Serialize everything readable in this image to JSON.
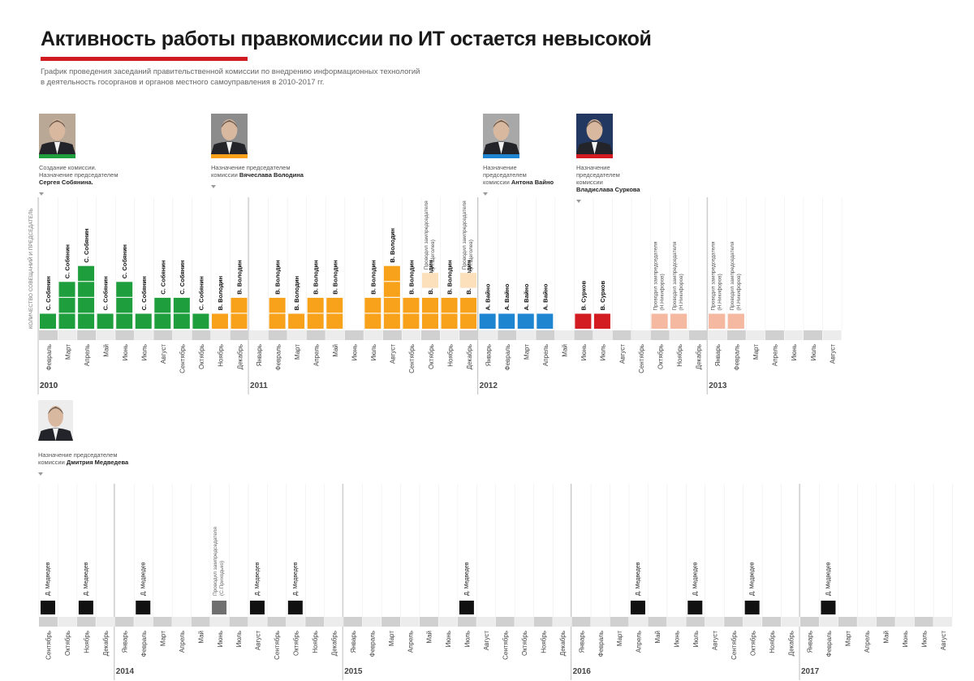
{
  "title": "Активность работы правкомиссии по ИТ остается невысокой",
  "subtitle_lines": [
    "График проведения заседаний правительственной комиссии по внедрению информационных технологий",
    "в деятельность госорганов и органов местного самоуправления в  2010-2017  гг."
  ],
  "y_axis_label": "КОЛИЧЕСТВО СОВЕЩАНИЙ И ПРЕДСЕДАТЕЛЬ",
  "colors": {
    "sobyanin": "#1f9e3d",
    "volodin": "#f8a21c",
    "vaino": "#1e86d0",
    "surkov": "#d21c22",
    "deputy_shchegolev": "#fbe0bb",
    "deputy_nikiforov": "#f5b8a0",
    "medvedev": "#111111",
    "deputy_prikhodko": "#707070",
    "band_light": "#ececec",
    "band_dark": "#d0d0d0",
    "accent": "#d01c20"
  },
  "chairs": [
    {
      "id": "sobyanin",
      "caption": [
        "Создание комиссии.",
        "Назначение председателем"
      ],
      "bold": [
        "Сергея Собянина."
      ],
      "color_key": "sobyanin"
    },
    {
      "id": "volodin",
      "caption": [
        "Назначение председателем",
        "комиссии "
      ],
      "bold_inline": "Вячеслава Володина",
      "color_key": "volodin"
    },
    {
      "id": "vaino",
      "caption": [
        "Назначение",
        "председателем",
        "комиссии "
      ],
      "bold_inline": "Антона Вайно",
      "color_key": "vaino"
    },
    {
      "id": "surkov",
      "caption": [
        "Назначение",
        "председателем",
        "комиссии"
      ],
      "bold": [
        "Владислава Суркова"
      ],
      "color_key": "surkov"
    },
    {
      "id": "medvedev",
      "caption": [
        "Назначение председателем",
        "комиссии "
      ],
      "bold_inline": "Дмитрия Медведева",
      "color_key": "medvedev"
    }
  ],
  "chart_data": {
    "type": "bar",
    "unit": "meetings per month",
    "rows": [
      {
        "months": [
          "Февраль",
          "Март",
          "Апрель",
          "Май",
          "Июнь",
          "Июль",
          "Август",
          "Сентябрь",
          "Октябрь",
          "Ноябрь",
          "Декабрь",
          "Январь",
          "Февраль",
          "Март",
          "Апрель",
          "Май",
          "Июнь",
          "Июль",
          "Август",
          "Сентябрь",
          "Октябрь",
          "Ноябрь",
          "Декабрь",
          "Январь",
          "Февраль",
          "Март",
          "Апрель",
          "Май",
          "Июнь",
          "Июль",
          "Август",
          "Сентябрь",
          "Октябрь",
          "Ноябрь",
          "Декабрь",
          "Январь",
          "Февраль",
          "Март",
          "Апрель",
          "Июнь",
          "Июль",
          "Август"
        ],
        "years": [
          {
            "label": "2010",
            "start": 0
          },
          {
            "label": "2011",
            "start": 11
          },
          {
            "label": "2012",
            "start": 23
          },
          {
            "label": "2013",
            "start": 35
          }
        ],
        "values": [
          1,
          3,
          4,
          1,
          3,
          1,
          2,
          2,
          1,
          1,
          2,
          0,
          2,
          1,
          2,
          2,
          0,
          2,
          4,
          2,
          2,
          2,
          2,
          1,
          1,
          1,
          1,
          0,
          1,
          1,
          0,
          0,
          1,
          1,
          0,
          1,
          1,
          0,
          0,
          0,
          0,
          0
        ],
        "chairs": [
          "С. Собянин",
          "С. Собянин",
          "С. Собянин",
          "С. Собянин",
          "С. Собянин",
          "С. Собянин",
          "С. Собянин",
          "С. Собянин",
          "С. Собянин",
          "В. Володин",
          "В. Володин",
          "",
          "В. Володин",
          "В. Володин",
          "В. Володин",
          "В. Володин",
          "",
          "В. Володин",
          "В. Володин",
          "В. Володин",
          "В. Володин",
          "В. Володин",
          "В. Володин",
          "А. Вайно",
          "А. Вайно",
          "А. Вайно",
          "А. Вайно",
          "",
          "В. Сурков",
          "В. Сурков",
          "",
          "",
          "",
          "",
          "",
          "",
          "",
          "",
          "",
          "",
          "",
          ""
        ],
        "series": [
          "sobyanin",
          "sobyanin",
          "sobyanin",
          "sobyanin",
          "sobyanin",
          "sobyanin",
          "sobyanin",
          "sobyanin",
          "sobyanin",
          "volodin",
          "volodin",
          "",
          "volodin",
          "volodin",
          "volodin",
          "volodin",
          "",
          "volodin",
          "volodin",
          "volodin",
          "volodin",
          "volodin",
          "volodin",
          "vaino",
          "vaino",
          "vaino",
          "vaino",
          "",
          "surkov",
          "surkov",
          "",
          "",
          "deputy_nikiforov",
          "deputy_nikiforov",
          "",
          "deputy_nikiforov",
          "deputy_nikiforov",
          "",
          "",
          "",
          "",
          ""
        ],
        "deputy_meetings": [
          {
            "index": 20,
            "count": 1,
            "color_key": "deputy_shchegolev",
            "label": [
              "Проводил зампредседателя",
              "(Н.Щеголев)"
            ]
          },
          {
            "index": 22,
            "count": 1,
            "color_key": "deputy_shchegolev",
            "label": [
              "Проводил зампредседателя",
              "(Н.Щеголев)"
            ]
          },
          {
            "index": 32,
            "count": 1,
            "color_key": "deputy_nikiforov",
            "label": [
              "Проводил зампредседателя",
              "(Н.Никифоров)"
            ]
          },
          {
            "index": 33,
            "count": 1,
            "color_key": "deputy_nikiforov",
            "label": [
              "Проводил зампредседателя",
              "(Н.Никифоров)"
            ]
          },
          {
            "index": 35,
            "count": 1,
            "color_key": "deputy_nikiforov",
            "label": [
              "Проводил зампредседателя",
              "(Н.Никифоров)"
            ]
          },
          {
            "index": 36,
            "count": 1,
            "color_key": "deputy_nikiforov",
            "label": [
              "Проводил зампредседателя",
              "(Н.Никифоров)"
            ]
          }
        ]
      },
      {
        "months": [
          "Сентябрь",
          "Октябрь",
          "Ноябрь",
          "Декабрь",
          "Январь",
          "Февраль",
          "Март",
          "Апрель",
          "Май",
          "Июнь",
          "Июль",
          "Август",
          "Сентябрь",
          "Октябрь",
          "Ноябрь",
          "Декабрь",
          "Январь",
          "Февраль",
          "Март",
          "Апрель",
          "Май",
          "Июнь",
          "Июль",
          "Август",
          "Сентябрь",
          "Октябрь",
          "Ноябрь",
          "Декабрь",
          "Январь",
          "Февраль",
          "Март",
          "Апрель",
          "Май",
          "Июнь",
          "Июль",
          "Август",
          "Сентябрь",
          "Октябрь",
          "Ноябрь",
          "Декабрь",
          "Январь",
          "Февраль",
          "Март",
          "Апрель",
          "Май",
          "Июнь",
          "Июль",
          "Август"
        ],
        "years": [
          {
            "label": "2014",
            "start": 4
          },
          {
            "label": "2015",
            "start": 16
          },
          {
            "label": "2016",
            "start": 28
          },
          {
            "label": "2017",
            "start": 40
          }
        ],
        "meetings": [
          {
            "index": 0,
            "label": "Д. Медведев",
            "color_key": "medvedev"
          },
          {
            "index": 2,
            "label": "Д. Медведев",
            "color_key": "medvedev"
          },
          {
            "index": 5,
            "label": "Д. Медведев",
            "color_key": "medvedev"
          },
          {
            "index": 9,
            "label": "Проводил зампредседателя (С.Приходько)",
            "color_key": "deputy_prikhodko"
          },
          {
            "index": 11,
            "label": "Д. Медведев",
            "color_key": "medvedev"
          },
          {
            "index": 13,
            "label": "Д. Медведев",
            "color_key": "medvedev"
          },
          {
            "index": 22,
            "label": "Д. Медведев",
            "color_key": "medvedev"
          },
          {
            "index": 31,
            "label": "Д. Медведев",
            "color_key": "medvedev"
          },
          {
            "index": 34,
            "label": "Д. Медведев",
            "color_key": "medvedev"
          },
          {
            "index": 37,
            "label": "Д. Медведев",
            "color_key": "medvedev"
          },
          {
            "index": 41,
            "label": "Д. Медведев",
            "color_key": "medvedev"
          }
        ]
      }
    ]
  }
}
